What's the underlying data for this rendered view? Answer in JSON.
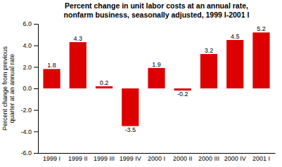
{
  "chart_data": {
    "type": "bar",
    "title": "Percent change in unit labor costs at an annual rate,\nnonfarm business, seasonally adjusted, 1999 I-2001 I",
    "y_label": "Percent change from previous\nquarter at an annual rate",
    "categories": [
      "1999 I",
      "1999 II",
      "1999 III",
      "1999 IV",
      "2000 I",
      "2000 II",
      "2000 III",
      "2000 IV",
      "2001 I"
    ],
    "values": [
      1.8,
      4.3,
      0.2,
      -3.5,
      1.9,
      -0.2,
      3.2,
      4.5,
      5.2
    ],
    "color": "#dd0000",
    "ylim": [
      -6.0,
      6.0
    ],
    "yticks": [
      {
        "value": -6.0,
        "label": "-6.0"
      },
      {
        "value": -4.0,
        "label": "-4.0"
      },
      {
        "value": -2.0,
        "label": "-2.0"
      },
      {
        "value": 0.0,
        "label": "0.0"
      },
      {
        "value": 2.0,
        "label": "2.0"
      },
      {
        "value": 4.0,
        "label": "4.0"
      },
      {
        "value": 6.0,
        "label": "6.0"
      }
    ],
    "grid": false,
    "data_labels": true
  }
}
